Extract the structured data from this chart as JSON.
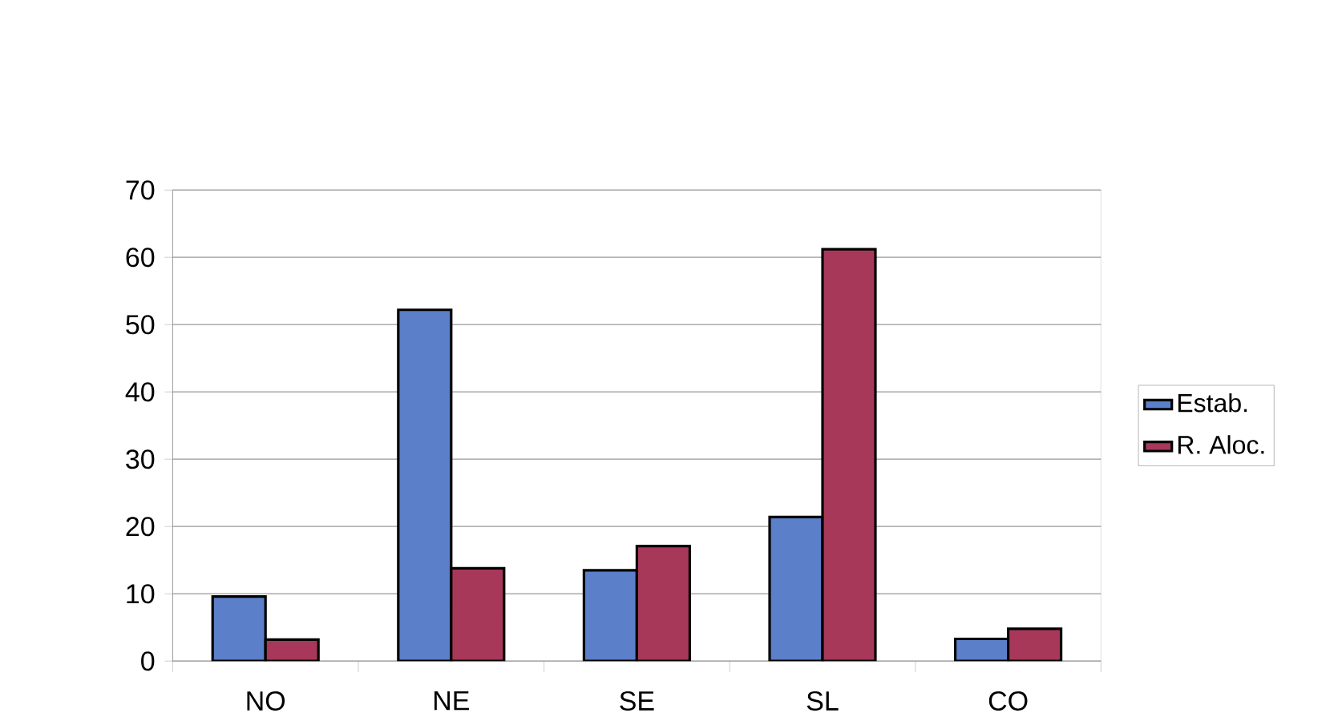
{
  "chart_data": {
    "type": "bar",
    "categories": [
      "NO",
      "NE",
      "SE",
      "SL",
      "CO"
    ],
    "series": [
      {
        "name": "Estab.",
        "color": "#5b7fc8",
        "values": [
          9.6,
          52.2,
          13.5,
          21.4,
          3.3
        ]
      },
      {
        "name": "R. Aloc.",
        "color": "#a8385a",
        "values": [
          3.2,
          13.8,
          17.1,
          61.2,
          4.8
        ]
      }
    ],
    "ylim": [
      0,
      70
    ],
    "yticks": [
      0,
      10,
      20,
      30,
      40,
      50,
      60,
      70
    ],
    "grid": "y",
    "legend": "right"
  }
}
